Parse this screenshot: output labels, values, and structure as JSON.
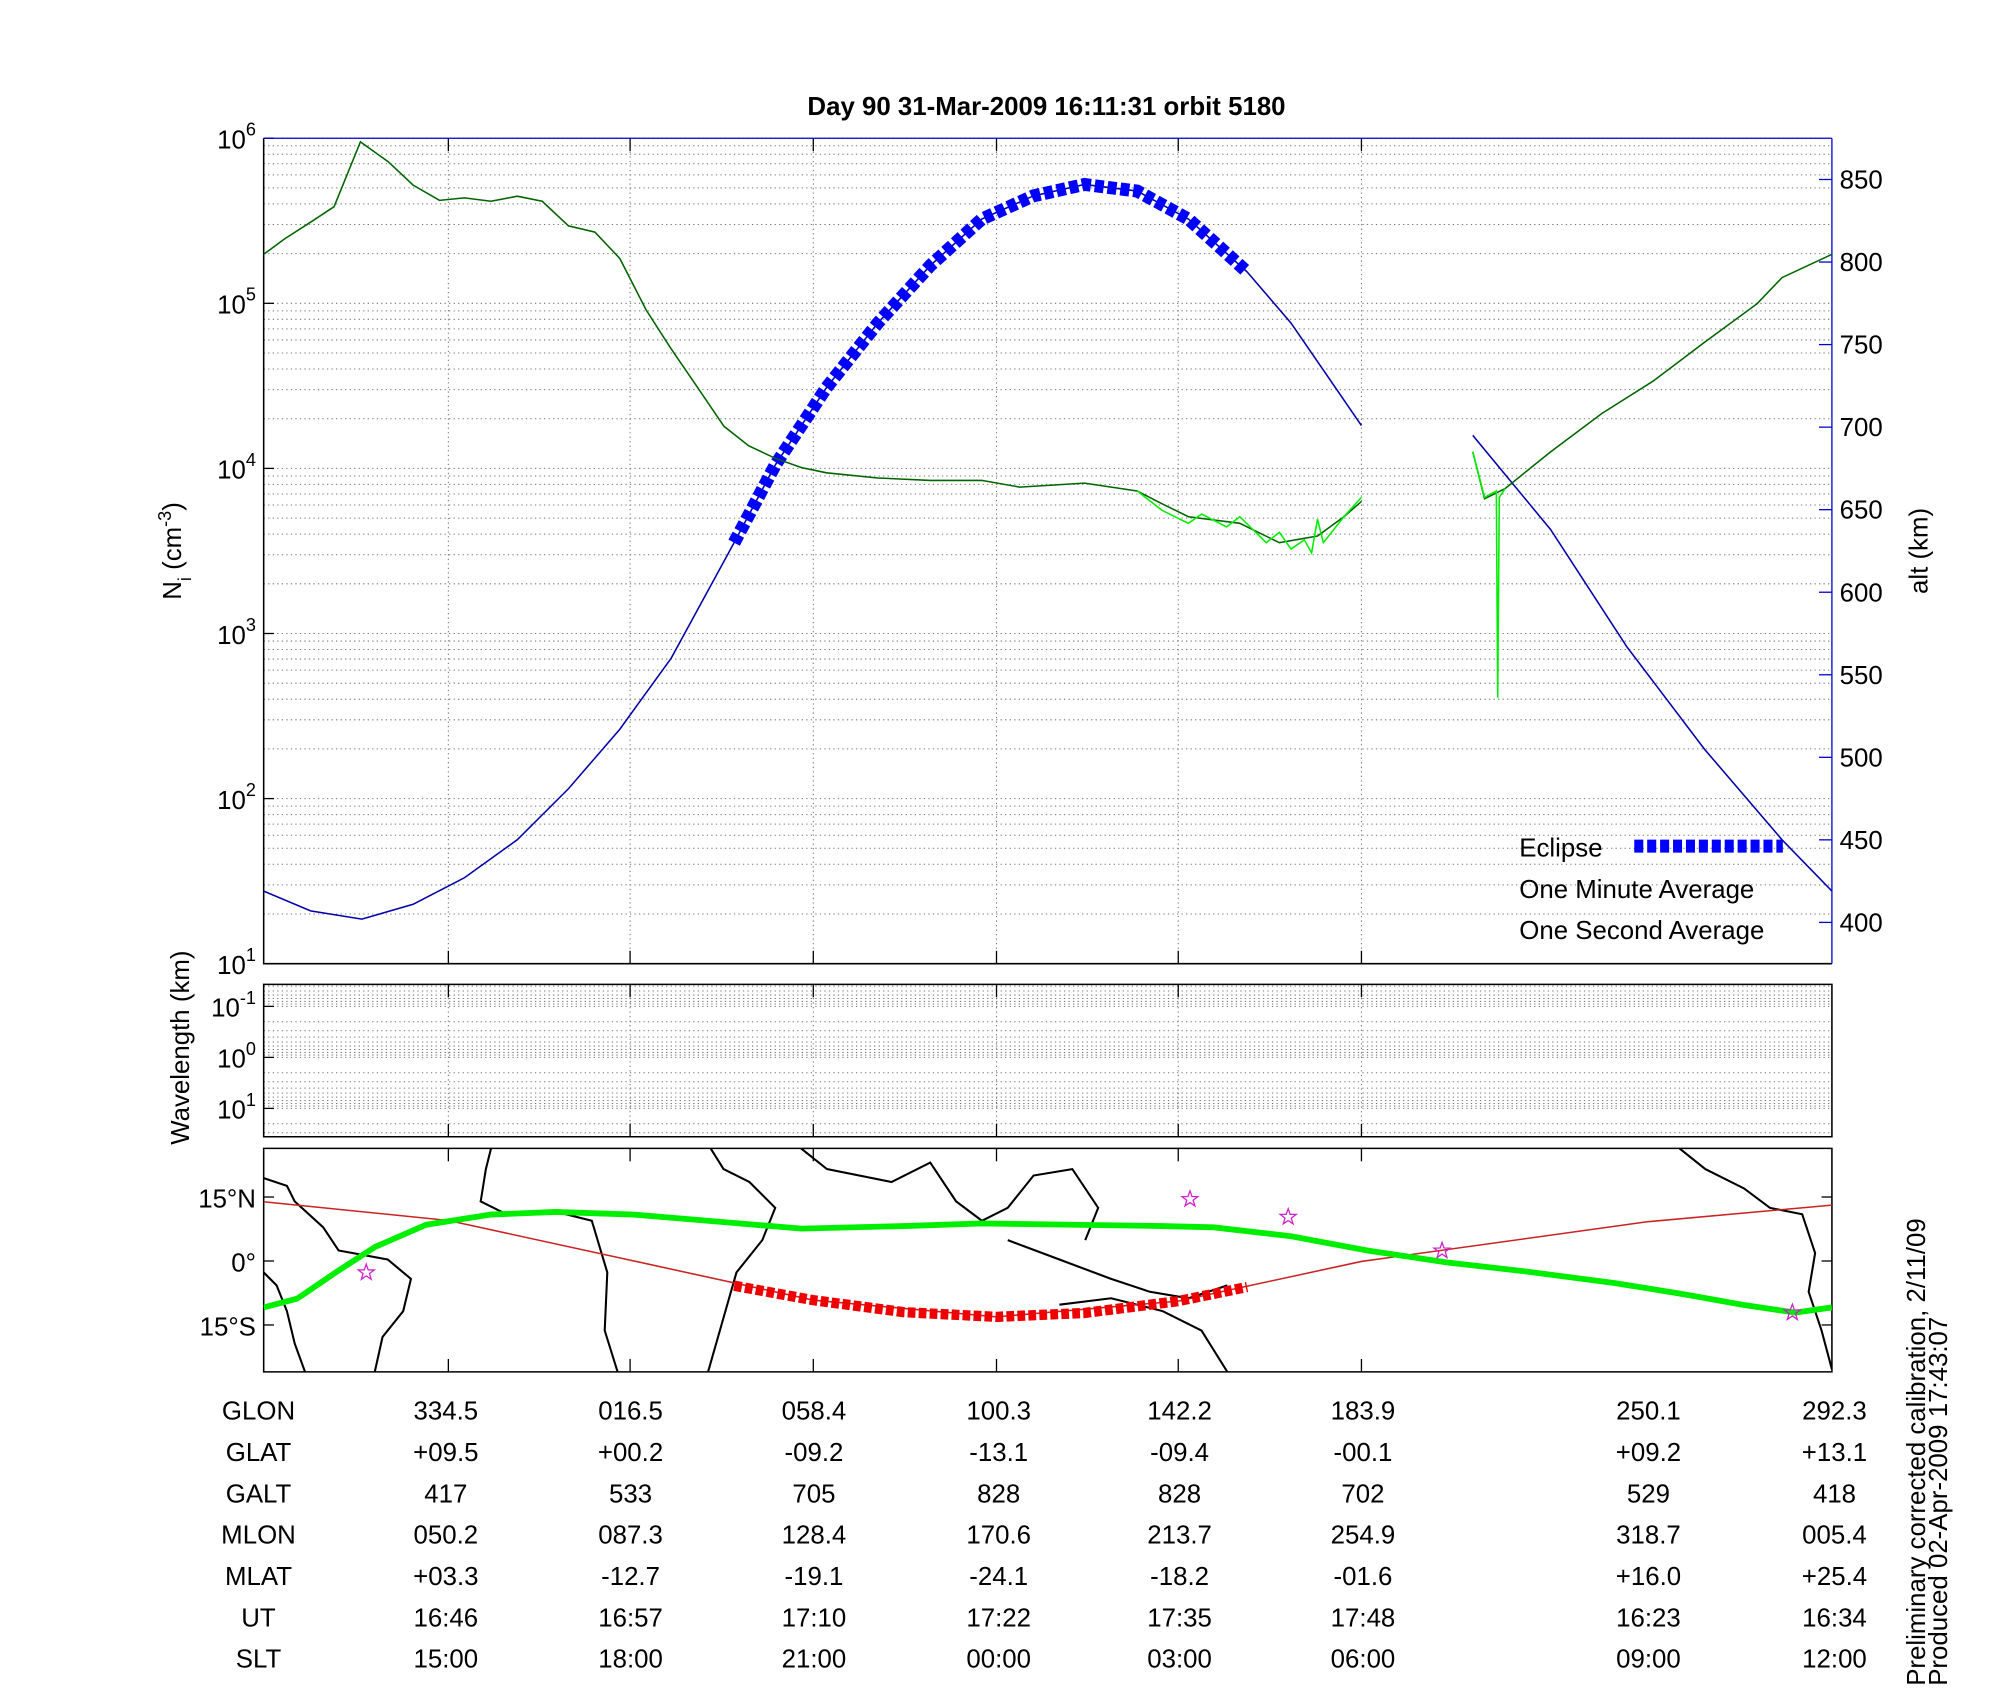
{
  "chart_data": [
    {
      "type": "line",
      "title": "Day 90  31-Mar-2009 16:11:31   orbit 5180",
      "ylabel": [
        "N",
        "i",
        " (cm",
        "-3",
        ")"
      ],
      "y2label": "alt (km)",
      "xlim": [
        0,
        107
      ],
      "xticks": [
        12.6,
        25.0,
        37.5,
        50.0,
        62.4,
        74.9
      ],
      "yscale": "log",
      "ylim": [
        10,
        1000000
      ],
      "yticks": [
        {
          "value": 10,
          "label": "10",
          "exponent": "1"
        },
        {
          "value": 100,
          "label": "10",
          "exponent": "2"
        },
        {
          "value": 1000,
          "label": "10",
          "exponent": "3"
        },
        {
          "value": 10000,
          "label": "10",
          "exponent": "4"
        },
        {
          "value": 100000,
          "label": "10",
          "exponent": "5"
        },
        {
          "value": 1000000,
          "label": "10",
          "exponent": "6"
        }
      ],
      "y2lim": [
        375,
        875
      ],
      "y2ticks": [
        400,
        450,
        500,
        550,
        600,
        650,
        700,
        750,
        800,
        850
      ],
      "y2color": "#0000cc",
      "grid": true,
      "legend": "lower right",
      "series": [
        {
          "color": "#0000aa",
          "axis": "y2",
          "line_style": "thin",
          "x": [
            0,
            3.2,
            6.7,
            10.2,
            13.7,
            17.3,
            20.8,
            24.3,
            27.8,
            32.1,
            34.9,
            38.4,
            41.9,
            45.5,
            49.0,
            52.5,
            56.0,
            59.6,
            63.1,
            67.1,
            70.1,
            74.9,
            78.0,
            82.5,
            87.8,
            93.0,
            98.3,
            103.6,
            107
          ],
          "values": [
            419,
            407,
            402,
            411,
            427,
            450,
            481,
            517,
            560,
            630,
            677,
            724,
            763,
            798,
            826,
            840,
            847,
            843,
            826,
            794,
            763,
            701,
            null,
            695,
            638,
            567,
            505,
            450,
            419
          ]
        },
        {
          "name": "Eclipse",
          "color": "#0000ff",
          "label_color": "#0000ff",
          "axis": "y2",
          "line_style": "thick-dashed",
          "x": [
            32.1,
            34.9,
            38.4,
            41.9,
            45.5,
            49.0,
            52.5,
            56.0,
            59.6,
            63.1,
            67.1
          ],
          "values": [
            630,
            677,
            724,
            763,
            798,
            826,
            840,
            847,
            843,
            826,
            794
          ]
        },
        {
          "name": "One Minute Average",
          "color": "#006400",
          "label_color": "#000000",
          "line_style": "thin",
          "x": [
            0,
            1.4,
            3.2,
            4.8,
            6.6,
            8.5,
            10.2,
            12.0,
            13.7,
            15.5,
            17.3,
            19.0,
            20.8,
            22.6,
            24.3,
            26.1,
            27.8,
            29.6,
            31.4,
            33.1,
            34.9,
            36.7,
            38.4,
            41.9,
            45.5,
            49.0,
            51.6,
            56.0,
            59.6,
            61.3,
            63.1,
            66.6,
            69.3,
            71.9,
            73.7,
            74.9,
            78.0,
            82.5,
            83.3,
            84.7,
            87.8,
            91.3,
            94.8,
            98.3,
            101.9,
            103.6,
            107
          ],
          "values": [
            198000,
            245000,
            310000,
            385000,
            950000,
            720000,
            520000,
            420000,
            435000,
            415000,
            445000,
            415000,
            294000,
            270000,
            187000,
            91000,
            53000,
            31000,
            18000,
            13700,
            11500,
            10100,
            9400,
            8750,
            8450,
            8450,
            7700,
            8150,
            7300,
            6100,
            5100,
            4650,
            3550,
            3900,
            5100,
            6300,
            null,
            12600,
            6550,
            7550,
            12600,
            21500,
            33800,
            58000,
            99500,
            143000,
            198000
          ]
        },
        {
          "name": "One Second Average",
          "color": "#00ee00",
          "label_color": "#00ee00",
          "line_style": "thin",
          "x": [
            59.6,
            61.3,
            63.1,
            64.0,
            65.7,
            66.6,
            68.4,
            69.3,
            70.1,
            71.0,
            71.5,
            71.9,
            72.3,
            73.7,
            74.9,
            78.0,
            82.5,
            83.3,
            84.1,
            84.2,
            84.3,
            84.7
          ],
          "values": [
            7300,
            5570,
            4650,
            5290,
            4420,
            5100,
            3550,
            4100,
            3250,
            3690,
            3080,
            4920,
            3550,
            5100,
            6680,
            null,
            12600,
            6680,
            7300,
            409,
            6680,
            7550
          ]
        }
      ]
    },
    {
      "type": "empty",
      "ylabel": "Wavelength (km)",
      "xlim": [
        0,
        107
      ],
      "xticks": [
        12.6,
        25.0,
        37.5,
        50.0,
        62.4,
        74.9
      ],
      "yscale": "log",
      "y_inverted": true,
      "ylim": [
        0.037,
        36
      ],
      "yticks": [
        {
          "value": 0.1,
          "label": "10",
          "exponent": "-1"
        },
        {
          "value": 1,
          "label": "10",
          "exponent": "0"
        },
        {
          "value": 10,
          "label": "10",
          "exponent": "1"
        }
      ],
      "grid": true
    },
    {
      "type": "map",
      "xlim": [
        0,
        107
      ],
      "xticks": [
        12.6,
        25.0,
        37.5,
        50.0,
        62.4,
        74.9
      ],
      "ylim": [
        -26,
        26.4
      ],
      "yticks": [
        {
          "value": 15,
          "label": "15°N"
        },
        {
          "value": 0,
          "label": "0°"
        },
        {
          "value": -15,
          "label": "15°S"
        }
      ],
      "series": [
        {
          "color": "#cc2222",
          "line_style": "thin",
          "x": [
            0,
            12.6,
            25.0,
            37.5,
            50.0,
            62.4,
            74.9,
            94.4,
            107
          ],
          "values": [
            13.9,
            9.5,
            0.2,
            -9.2,
            -13.1,
            -9.4,
            -0.1,
            9.2,
            13.1
          ]
        },
        {
          "color": "#00ee00",
          "line_style": "thick",
          "x": [
            0,
            2.3,
            4.9,
            7.6,
            11.1,
            15.5,
            19.9,
            25.2,
            31.4,
            36.7,
            43.7,
            49.0,
            55.2,
            61.3,
            64.8,
            70.1,
            75.4,
            80.7,
            86.0,
            92.2,
            96.6,
            101.0,
            104.5,
            107
          ],
          "values": [
            -10.9,
            -8.8,
            -2.7,
            3.3,
            8.5,
            10.9,
            11.5,
            10.9,
            9.1,
            7.6,
            8.2,
            8.8,
            8.5,
            8.2,
            7.9,
            5.8,
            2.4,
            -0.3,
            -2.4,
            -5.2,
            -7.6,
            -10.3,
            -12.1,
            -10.9
          ]
        },
        {
          "color": "#ee0000",
          "line_style": "thick-dashed",
          "x": [
            32.1,
            37.5,
            43.7,
            50.0,
            56.0,
            62.4,
            67.1
          ],
          "values": [
            -5.8,
            -9.2,
            -12.0,
            -13.1,
            -12.2,
            -9.4,
            -6.1
          ]
        },
        {
          "color": "#cc22cc",
          "line_style": "star",
          "x": [
            7.0,
            63.2,
            69.9,
            80.4,
            104.3
          ],
          "values": [
            -2.7,
            14.5,
            10.3,
            2.4,
            -12.1
          ]
        }
      ]
    }
  ],
  "table": {
    "rows": [
      [
        "GLON",
        "334.5",
        "016.5",
        "058.4",
        "100.3",
        "142.2",
        "183.9",
        "250.1",
        "292.3"
      ],
      [
        "GLAT",
        "+09.5",
        "+00.2",
        "-09.2",
        "-13.1",
        "-09.4",
        "-00.1",
        "+09.2",
        "+13.1"
      ],
      [
        "GALT",
        "417",
        "533",
        "705",
        "828",
        "828",
        "702",
        "529",
        "418"
      ],
      [
        "MLON",
        "050.2",
        "087.3",
        "128.4",
        "170.6",
        "213.7",
        "254.9",
        "318.7",
        "005.4"
      ],
      [
        "MLAT",
        "+03.3",
        "-12.7",
        "-19.1",
        "-24.1",
        "-18.2",
        "-01.6",
        "+16.0",
        "+25.4"
      ],
      [
        "UT",
        "16:46",
        "16:57",
        "17:10",
        "17:22",
        "17:35",
        "17:48",
        "16:23",
        "16:34"
      ],
      [
        "SLT",
        "15:00",
        "18:00",
        "21:00",
        "00:00",
        "03:00",
        "06:00",
        "09:00",
        "12:00"
      ]
    ]
  },
  "footnotes": [
    "Preliminary corrected calibration, 2/11/09",
    "Produced 02-Apr-2009 17:43:07"
  ]
}
